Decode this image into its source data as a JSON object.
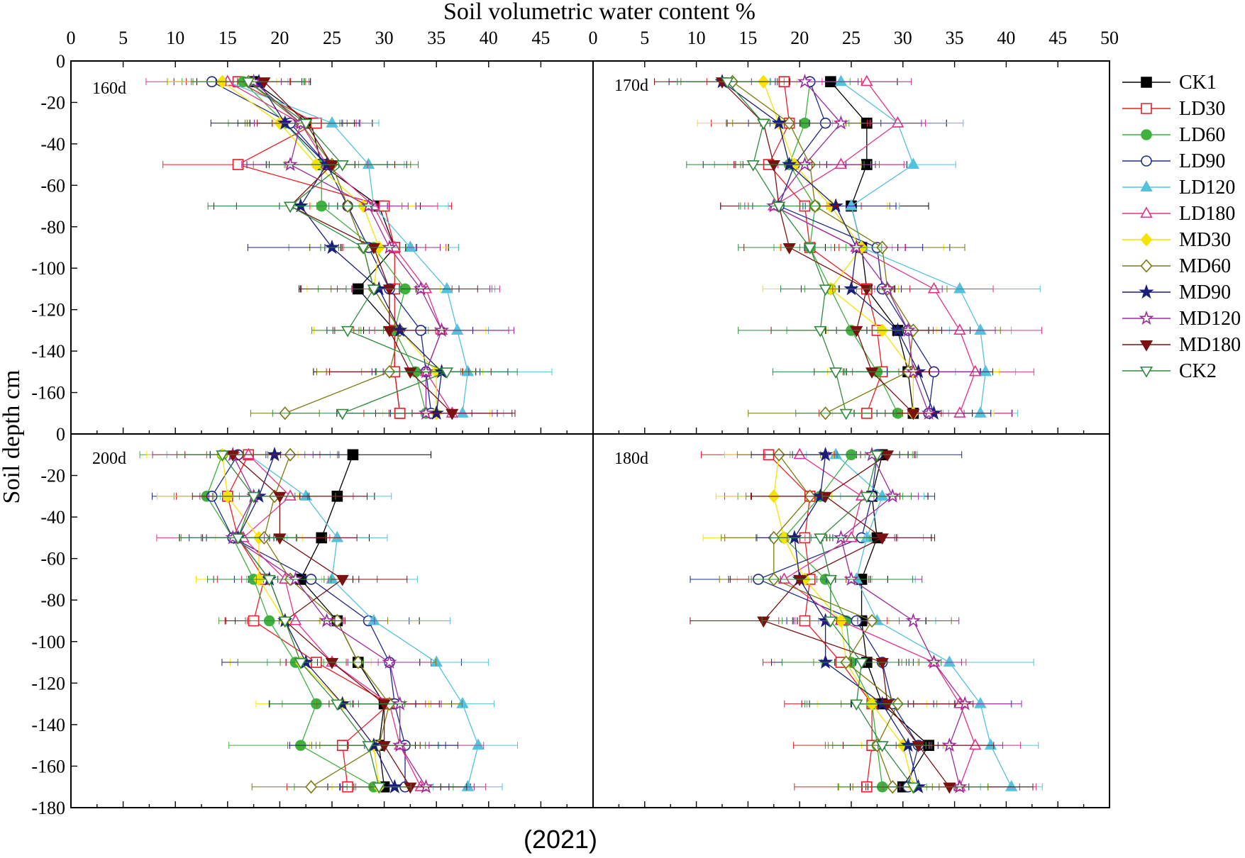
{
  "figure": {
    "x_axis_title": "Soil volumetric water content %",
    "y_axis_title": "Soil depth cm",
    "year_label": "(2021)"
  },
  "series_styles": [
    {
      "name": "CK1",
      "color": "#000000",
      "marker": "square",
      "filled": true
    },
    {
      "name": "LD30",
      "color": "#ee1c25",
      "marker": "square",
      "filled": false
    },
    {
      "name": "LD60",
      "color": "#3fb13f",
      "marker": "circle",
      "filled": true
    },
    {
      "name": "LD90",
      "color": "#1f2a8c",
      "marker": "circle",
      "filled": false
    },
    {
      "name": "LD120",
      "color": "#55c1dc",
      "marker": "triangle",
      "filled": true
    },
    {
      "name": "LD180",
      "color": "#e6308a",
      "marker": "triangle",
      "filled": false
    },
    {
      "name": "MD30",
      "color": "#f7e200",
      "marker": "diamond",
      "filled": true
    },
    {
      "name": "MD60",
      "color": "#7a7a10",
      "marker": "diamond",
      "filled": false
    },
    {
      "name": "MD90",
      "color": "#1a1d7a",
      "marker": "star",
      "filled": true
    },
    {
      "name": "MD120",
      "color": "#9b2c9b",
      "marker": "star",
      "filled": false
    },
    {
      "name": "MD180",
      "color": "#7a1010",
      "marker": "tri-down",
      "filled": true
    },
    {
      "name": "CK2",
      "color": "#2e8b3e",
      "marker": "tri-down",
      "filled": false
    }
  ],
  "chart_data": [
    {
      "type": "scatter",
      "panel": "160d",
      "xlim": [
        0,
        50
      ],
      "ylim": [
        -180,
        0
      ],
      "depths": [
        -10,
        -30,
        -50,
        -70,
        -90,
        -110,
        -130,
        -150,
        -170
      ],
      "series": [
        {
          "name": "CK1",
          "x": [
            17.5,
            23.0,
            24.0,
            29.5,
            31.0,
            27.5,
            31.0,
            31.0,
            31.5
          ]
        },
        {
          "name": "LD30",
          "x": [
            16.0,
            23.5,
            16.0,
            30.0,
            31.0,
            31.0,
            31.0,
            31.0,
            31.5
          ]
        },
        {
          "name": "LD60",
          "x": [
            16.5,
            20.5,
            24.0,
            24.0,
            29.0,
            32.0,
            31.0,
            33.0,
            34.0
          ]
        },
        {
          "name": "LD90",
          "x": [
            13.5,
            21.0,
            24.5,
            26.5,
            28.5,
            30.5,
            33.5,
            34.0,
            34.5
          ]
        },
        {
          "name": "LD120",
          "x": [
            15.0,
            25.0,
            28.5,
            29.0,
            32.5,
            36.0,
            37.0,
            38.0,
            37.5
          ]
        },
        {
          "name": "LD180",
          "x": [
            15.0,
            22.0,
            24.5,
            29.0,
            31.0,
            34.0,
            35.5,
            34.0,
            36.5
          ]
        },
        {
          "name": "MD30",
          "x": [
            14.5,
            20.0,
            23.5,
            28.0,
            29.5,
            29.0,
            31.5,
            35.0,
            35.0
          ]
        },
        {
          "name": "MD60",
          "x": [
            17.0,
            22.0,
            25.0,
            26.5,
            28.0,
            29.0,
            31.5,
            30.5,
            20.5
          ]
        },
        {
          "name": "MD90",
          "x": [
            18.0,
            20.5,
            24.5,
            22.0,
            25.0,
            29.5,
            31.5,
            35.5,
            35.0
          ]
        },
        {
          "name": "MD120",
          "x": [
            17.5,
            22.0,
            21.0,
            28.5,
            30.5,
            33.5,
            35.5,
            34.0,
            34.0
          ]
        },
        {
          "name": "MD180",
          "x": [
            18.5,
            22.5,
            25.0,
            21.0,
            29.0,
            30.5,
            30.5,
            32.5,
            36.5
          ]
        },
        {
          "name": "CK2",
          "x": [
            17.0,
            22.5,
            26.0,
            21.0,
            28.0,
            29.0,
            26.5,
            36.0,
            26.0
          ]
        }
      ]
    },
    {
      "type": "scatter",
      "panel": "170d",
      "xlim": [
        0,
        50
      ],
      "ylim": [
        -180,
        0
      ],
      "depths": [
        -10,
        -30,
        -50,
        -70,
        -90,
        -110,
        -130,
        -150,
        -170
      ],
      "series": [
        {
          "name": "CK1",
          "x": [
            23.0,
            26.5,
            26.5,
            25.0,
            26.0,
            26.5,
            29.5,
            30.5,
            31.0
          ]
        },
        {
          "name": "LD30",
          "x": [
            18.5,
            19.0,
            17.0,
            20.5,
            21.0,
            26.5,
            27.5,
            28.0,
            26.5
          ]
        },
        {
          "name": "LD60",
          "x": [
            21.0,
            20.5,
            19.0,
            21.5,
            21.0,
            23.0,
            25.0,
            27.5,
            29.5
          ]
        },
        {
          "name": "LD90",
          "x": [
            21.0,
            22.5,
            19.5,
            18.0,
            27.5,
            28.0,
            30.5,
            33.0,
            32.5
          ]
        },
        {
          "name": "LD120",
          "x": [
            24.0,
            29.5,
            31.0,
            25.0,
            26.0,
            35.5,
            37.5,
            38.0,
            37.5
          ]
        },
        {
          "name": "LD180",
          "x": [
            26.5,
            29.5,
            24.0,
            17.5,
            25.5,
            33.0,
            35.5,
            37.0,
            35.5
          ]
        },
        {
          "name": "MD30",
          "x": [
            16.5,
            18.0,
            19.5,
            23.0,
            26.0,
            23.0,
            28.0,
            31.0,
            31.0
          ]
        },
        {
          "name": "MD60",
          "x": [
            13.5,
            19.0,
            21.0,
            21.5,
            28.0,
            28.5,
            31.0,
            30.5,
            22.5
          ]
        },
        {
          "name": "MD90",
          "x": [
            12.5,
            18.0,
            19.0,
            23.5,
            25.5,
            25.0,
            29.5,
            31.5,
            33.0
          ]
        },
        {
          "name": "MD120",
          "x": [
            20.5,
            24.0,
            20.5,
            17.5,
            25.5,
            28.5,
            30.5,
            31.0,
            32.5
          ]
        },
        {
          "name": "MD180",
          "x": [
            12.5,
            16.5,
            17.5,
            18.0,
            19.0,
            26.5,
            25.5,
            27.0,
            31.0
          ]
        },
        {
          "name": "CK2",
          "x": [
            13.0,
            16.5,
            15.5,
            18.0,
            21.0,
            22.5,
            22.0,
            23.5,
            24.5
          ]
        }
      ]
    },
    {
      "type": "scatter",
      "panel": "200d",
      "xlim": [
        0,
        50
      ],
      "ylim": [
        -180,
        0
      ],
      "depths": [
        -10,
        -30,
        -50,
        -70,
        -90,
        -110,
        -130,
        -150,
        -170
      ],
      "series": [
        {
          "name": "CK1",
          "x": [
            27.0,
            25.5,
            24.0,
            22.0,
            25.5,
            27.5,
            30.0,
            29.5,
            30.0
          ]
        },
        {
          "name": "LD30",
          "x": [
            17.0,
            15.0,
            16.0,
            18.5,
            17.5,
            23.5,
            30.5,
            26.0,
            26.5
          ]
        },
        {
          "name": "LD60",
          "x": [
            14.5,
            13.0,
            15.5,
            17.5,
            19.0,
            21.5,
            23.5,
            22.0,
            29.0
          ]
        },
        {
          "name": "LD90",
          "x": [
            16.0,
            13.5,
            15.5,
            23.0,
            28.5,
            30.5,
            31.0,
            32.0,
            32.0
          ]
        },
        {
          "name": "LD120",
          "x": [
            17.0,
            22.5,
            25.5,
            25.0,
            29.0,
            35.0,
            37.5,
            39.0,
            38.0
          ]
        },
        {
          "name": "LD180",
          "x": [
            17.0,
            21.0,
            16.5,
            20.5,
            21.5,
            25.0,
            30.5,
            31.5,
            33.5
          ]
        },
        {
          "name": "MD30",
          "x": [
            14.5,
            15.0,
            18.0,
            18.0,
            20.5,
            22.0,
            26.0,
            29.0,
            29.5
          ]
        },
        {
          "name": "MD60",
          "x": [
            21.0,
            19.5,
            18.5,
            21.0,
            25.5,
            27.5,
            30.5,
            29.5,
            23.0
          ]
        },
        {
          "name": "MD90",
          "x": [
            19.5,
            18.0,
            16.0,
            19.0,
            20.5,
            22.5,
            26.0,
            29.0,
            31.0
          ]
        },
        {
          "name": "MD120",
          "x": [
            15.5,
            17.5,
            15.5,
            21.5,
            24.5,
            30.5,
            31.5,
            31.5,
            34.0
          ]
        },
        {
          "name": "MD180",
          "x": [
            15.5,
            20.0,
            20.0,
            26.0,
            20.5,
            25.0,
            30.0,
            30.0,
            32.5
          ]
        },
        {
          "name": "CK2",
          "x": [
            14.5,
            17.5,
            16.0,
            19.0,
            20.5,
            22.0,
            25.5,
            28.5,
            29.5
          ]
        }
      ]
    },
    {
      "type": "scatter",
      "panel": "180d",
      "xlim": [
        0,
        50
      ],
      "ylim": [
        -180,
        0
      ],
      "depths": [
        -10,
        -30,
        -50,
        -70,
        -90,
        -110,
        -130,
        -150,
        -170
      ],
      "series": [
        {
          "name": "CK1",
          "x": [
            28.0,
            27.0,
            27.5,
            26.0,
            26.0,
            26.5,
            28.0,
            32.5,
            30.0
          ]
        },
        {
          "name": "LD30",
          "x": [
            17.0,
            21.0,
            20.5,
            21.0,
            20.5,
            24.0,
            27.0,
            27.0,
            26.5
          ]
        },
        {
          "name": "LD60",
          "x": [
            25.0,
            22.0,
            18.5,
            22.5,
            24.5,
            25.0,
            27.0,
            27.5,
            28.0
          ]
        },
        {
          "name": "LD90",
          "x": [
            27.5,
            27.0,
            26.0,
            16.0,
            25.5,
            28.0,
            29.0,
            31.5,
            30.5
          ]
        },
        {
          "name": "LD120",
          "x": [
            23.5,
            28.0,
            26.5,
            25.5,
            27.5,
            34.5,
            37.5,
            38.5,
            40.5
          ]
        },
        {
          "name": "LD180",
          "x": [
            20.0,
            26.0,
            25.0,
            18.5,
            24.0,
            33.0,
            35.5,
            37.0,
            35.5
          ]
        },
        {
          "name": "MD30",
          "x": [
            18.0,
            17.5,
            18.5,
            20.5,
            24.0,
            24.5,
            27.0,
            30.0,
            31.0
          ]
        },
        {
          "name": "MD60",
          "x": [
            18.0,
            21.0,
            17.5,
            17.5,
            27.0,
            24.5,
            29.5,
            27.5,
            29.0
          ]
        },
        {
          "name": "MD90",
          "x": [
            22.5,
            22.0,
            19.5,
            20.0,
            22.5,
            22.5,
            28.0,
            30.5,
            31.5
          ]
        },
        {
          "name": "MD120",
          "x": [
            27.0,
            29.0,
            24.0,
            25.0,
            31.0,
            33.0,
            36.0,
            34.5,
            35.5
          ]
        },
        {
          "name": "MD180",
          "x": [
            28.5,
            22.5,
            28.0,
            20.0,
            16.5,
            28.0,
            28.5,
            31.5,
            34.5
          ]
        },
        {
          "name": "CK2",
          "x": [
            27.5,
            26.5,
            22.0,
            23.0,
            23.0,
            26.0,
            25.5,
            28.0,
            31.0
          ]
        }
      ]
    }
  ]
}
